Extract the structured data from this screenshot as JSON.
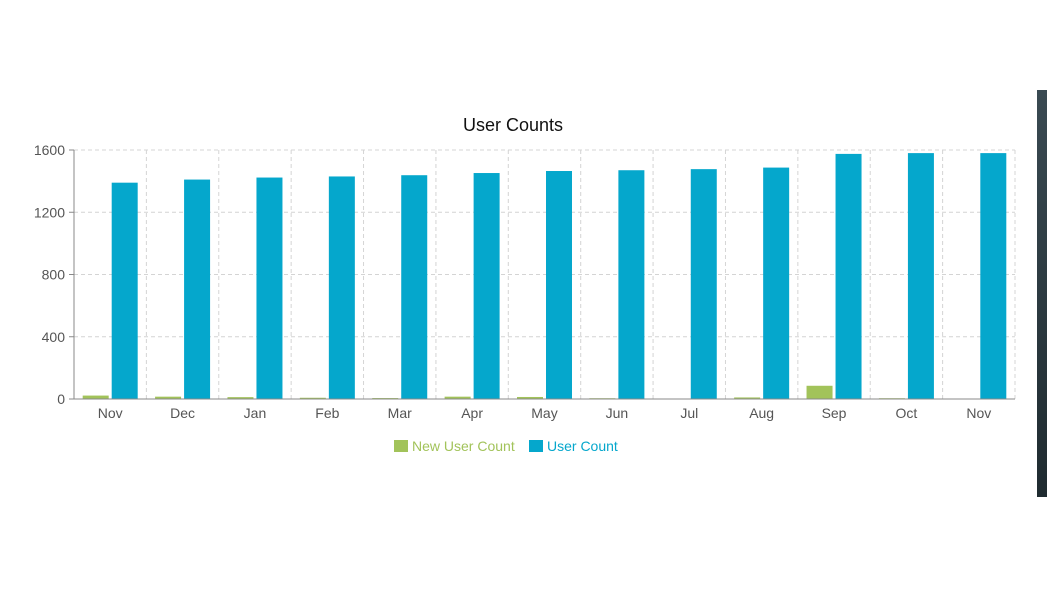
{
  "chart_data": {
    "type": "bar",
    "title": "User Counts",
    "xlabel": "",
    "ylabel": "",
    "categories": [
      "Nov",
      "Dec",
      "Jan",
      "Feb",
      "Mar",
      "Apr",
      "May",
      "Jun",
      "Jul",
      "Aug",
      "Sep",
      "Oct",
      "Nov"
    ],
    "yticks": [
      "0",
      "400",
      "800",
      "1200",
      "1600"
    ],
    "ylim": [
      0,
      1600
    ],
    "grid": true,
    "legend_position": "bottom-center",
    "series": [
      {
        "name": "New User Count",
        "color": "#a2c35a",
        "values": [
          22,
          15,
          12,
          8,
          6,
          15,
          13,
          5,
          3,
          10,
          85,
          5,
          2
        ]
      },
      {
        "name": "User Count",
        "color": "#05a7cc",
        "values": [
          1390,
          1410,
          1423,
          1430,
          1438,
          1452,
          1465,
          1470,
          1477,
          1487,
          1575,
          1580,
          1580
        ]
      }
    ]
  }
}
